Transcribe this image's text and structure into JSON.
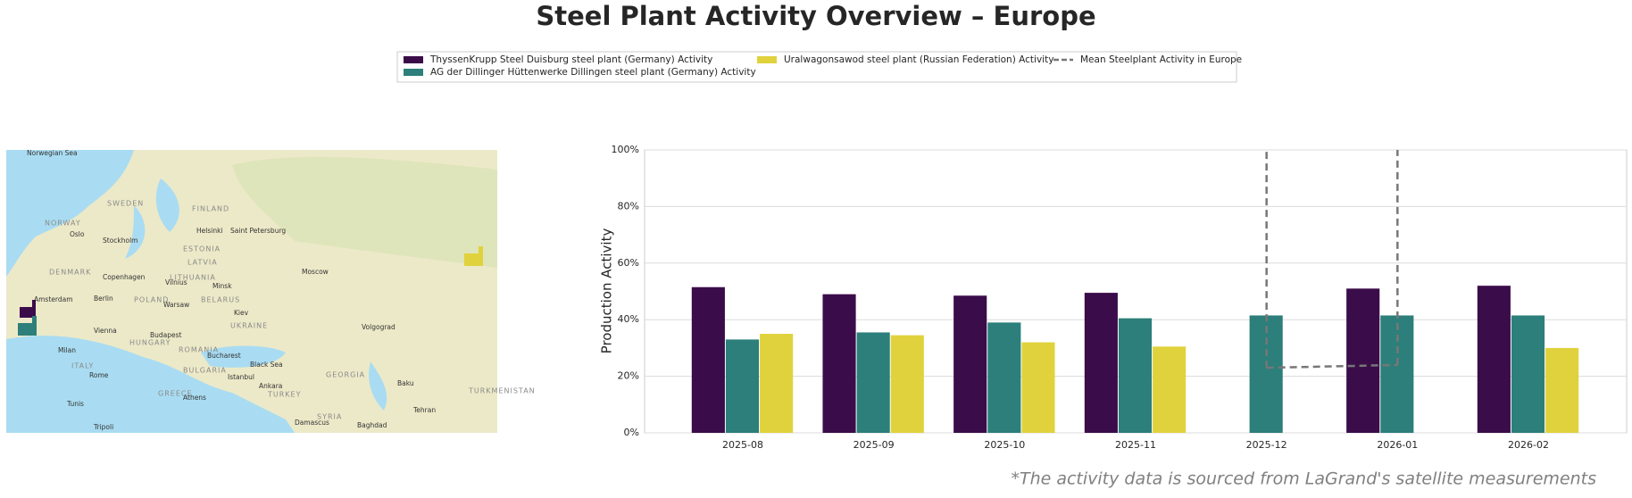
{
  "chart_data": {
    "type": "bar",
    "title": "Steel Plant Activity Overview – Europe",
    "y_label": "Production Activity",
    "footnote": "*The activity data is sourced from LaGrand's satellite measurements",
    "categories": [
      "2025-08",
      "2025-09",
      "2025-10",
      "2025-11",
      "2025-12",
      "2026-01",
      "2026-02"
    ],
    "series": [
      {
        "name": "ThyssenKrupp Steel Duisburg steel plant (Germany) Activity",
        "color": "#3b0c4a",
        "values": [
          51.5,
          49,
          48.5,
          49.5,
          null,
          51,
          52
        ]
      },
      {
        "name": "AG der Dillinger Hüttenwerke Dillingen steel plant (Germany) Activity",
        "color": "#2c7f7a",
        "values": [
          33,
          35.5,
          39,
          40.5,
          41.5,
          41.5,
          41.5
        ]
      },
      {
        "name": "Uralwagonsawod steel plant (Russian Federation) Activity",
        "color": "#e0d23c",
        "values": [
          35,
          34.5,
          32,
          30.5,
          null,
          null,
          30
        ]
      },
      {
        "name": "Mean Steelplant Activity in Europe",
        "type": "line",
        "color": "#777777",
        "values": [
          null,
          null,
          null,
          null,
          23,
          24,
          null
        ]
      }
    ],
    "ylim": [
      0,
      100
    ],
    "yticks": [
      {
        "value": 0,
        "label": "0%"
      },
      {
        "value": 20,
        "label": "20%"
      },
      {
        "value": 40,
        "label": "40%"
      },
      {
        "value": 60,
        "label": "60%"
      },
      {
        "value": 80,
        "label": "80%"
      },
      {
        "value": 100,
        "label": "100%"
      }
    ],
    "grid": true
  },
  "map": {
    "labels": [
      "Norwegian Sea",
      "SWEDEN",
      "FINLAND",
      "NORWAY",
      "Oslo",
      "Stockholm",
      "Helsinki",
      "Saint Petersburg",
      "ESTONIA",
      "LATVIA",
      "DENMARK",
      "Copenhagen",
      "LITHUANIA",
      "Vilnius",
      "Minsk",
      "Moscow",
      "Amsterdam",
      "Berlin",
      "POLAND",
      "Warsaw",
      "BELARUS",
      "Kiev",
      "UKRAINE",
      "Volgograd",
      "Vienna",
      "HUNGARY",
      "Budapest",
      "ROMANIA",
      "Bucharest",
      "Milan",
      "ITALY",
      "Rome",
      "BULGARIA",
      "Black Sea",
      "Istanbul",
      "GEORGIA",
      "Baku",
      "Ankara",
      "TURKEY",
      "Athens",
      "GREECE",
      "Tunis",
      "Tripoli",
      "SYRIA",
      "Damascus",
      "Baghdad",
      "Tehran",
      "TURKMENISTAN"
    ]
  }
}
